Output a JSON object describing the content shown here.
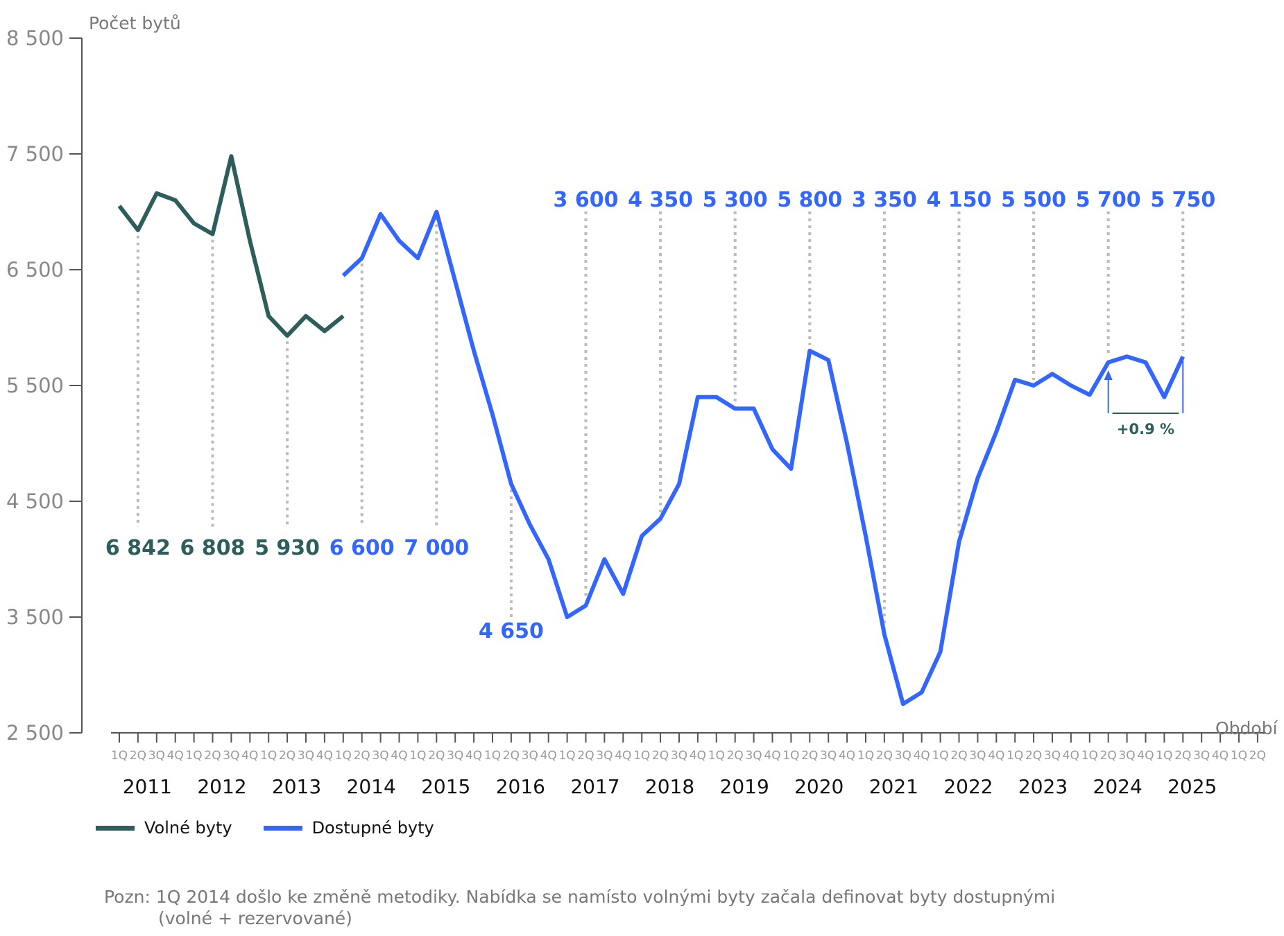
{
  "chart_data": {
    "type": "line",
    "ylabel": "Počet bytů",
    "xlabel": "Období",
    "ylim": [
      2500,
      8500
    ],
    "yticks": [
      2500,
      3500,
      4500,
      5500,
      6500,
      7500,
      8500
    ],
    "ytick_labels": [
      "2 500",
      "3 500",
      "4 500",
      "5 500",
      "6 500",
      "7 500",
      "8 500"
    ],
    "grid": false,
    "legend_position": "bottom-left",
    "quarters": [
      "1Q",
      "2Q",
      "3Q",
      "4Q",
      "1Q",
      "2Q",
      "3Q",
      "4Q",
      "1Q",
      "2Q",
      "3Q",
      "4Q",
      "1Q",
      "2Q",
      "3Q",
      "4Q",
      "1Q",
      "2Q",
      "3Q",
      "4Q",
      "1Q",
      "2Q",
      "3Q",
      "4Q",
      "1Q",
      "2Q",
      "3Q",
      "4Q",
      "1Q",
      "2Q",
      "3Q",
      "4Q",
      "1Q",
      "2Q",
      "3Q",
      "4Q",
      "1Q",
      "2Q",
      "3Q",
      "4Q",
      "1Q",
      "2Q",
      "3Q",
      "4Q",
      "1Q",
      "2Q",
      "3Q",
      "4Q",
      "1Q",
      "2Q",
      "3Q",
      "4Q",
      "1Q",
      "2Q",
      "3Q",
      "4Q",
      "1Q",
      "2Q",
      "3Q",
      "4Q",
      "1Q",
      "2Q"
    ],
    "years": [
      "2011",
      "2012",
      "2013",
      "2014",
      "2015",
      "2016",
      "2017",
      "2018",
      "2019",
      "2020",
      "2021",
      "2022",
      "2023",
      "2024",
      "2025"
    ],
    "series": [
      {
        "name": "Volné byty",
        "color": "#2e5e5c",
        "start_index": 0,
        "values": [
          7050,
          6842,
          7160,
          7100,
          6900,
          6808,
          7480,
          6750,
          6100,
          5930,
          6100,
          5970,
          6100
        ]
      },
      {
        "name": "Dostupné byty",
        "color": "#3366ff",
        "start_index": 12,
        "values": [
          6450,
          6600,
          6980,
          6750,
          6600,
          7000,
          6400,
          5800,
          5250,
          4650,
          4300,
          4000,
          3500,
          3600,
          4000,
          3700,
          4200,
          4350,
          4650,
          5400,
          5400,
          5300,
          5300,
          4950,
          4780,
          5800,
          5720,
          5000,
          4200,
          3350,
          2750,
          2850,
          3200,
          4150,
          4700,
          5100,
          5550,
          5500,
          5600,
          5500,
          5420,
          5700,
          5750,
          5700,
          5400,
          5750
        ]
      }
    ],
    "annotations": [
      {
        "index": 1,
        "label": "6 842",
        "series": "Volné byty",
        "position": "below"
      },
      {
        "index": 5,
        "label": "6 808",
        "series": "Volné byty",
        "position": "below"
      },
      {
        "index": 9,
        "label": "5 930",
        "series": "Volné byty",
        "position": "below"
      },
      {
        "index": 13,
        "label": "6 600",
        "series": "Dostupné byty",
        "position": "below"
      },
      {
        "index": 17,
        "label": "7 000",
        "series": "Dostupné byty",
        "position": "below"
      },
      {
        "index": 21,
        "label": "4 650",
        "series": "Dostupné byty",
        "position": "below"
      },
      {
        "index": 25,
        "label": "3 600",
        "series": "Dostupné byty",
        "position": "above"
      },
      {
        "index": 29,
        "label": "4 350",
        "series": "Dostupné byty",
        "position": "above"
      },
      {
        "index": 33,
        "label": "5 300",
        "series": "Dostupné byty",
        "position": "above"
      },
      {
        "index": 37,
        "label": "5 800",
        "series": "Dostupné byty",
        "position": "above"
      },
      {
        "index": 41,
        "label": "3 350",
        "series": "Dostupné byty",
        "position": "above"
      },
      {
        "index": 45,
        "label": "4 150",
        "series": "Dostupné byty",
        "position": "above"
      },
      {
        "index": 49,
        "label": "5 500",
        "series": "Dostupné byty",
        "position": "above"
      },
      {
        "index": 53,
        "label": "5 700",
        "series": "Dostupné byty",
        "position": "above"
      },
      {
        "index": 57,
        "label": "5 750",
        "series": "Dostupné byty",
        "position": "above"
      }
    ],
    "change_annotation": {
      "from_index": 53,
      "to_index": 57,
      "label": "+0.9 %",
      "color": "#2e5e5c"
    }
  },
  "legend": [
    {
      "label": "Volné byty",
      "color": "#2e5e5c"
    },
    {
      "label": "Dostupné byty",
      "color": "#3366ff"
    }
  ],
  "note": {
    "line1": "Pozn: 1Q 2014 došlo ke změně metodiky. Nabídka se namísto volnými byty začala definovat byty dostupnými",
    "line2": "(volné + rezervované)"
  }
}
